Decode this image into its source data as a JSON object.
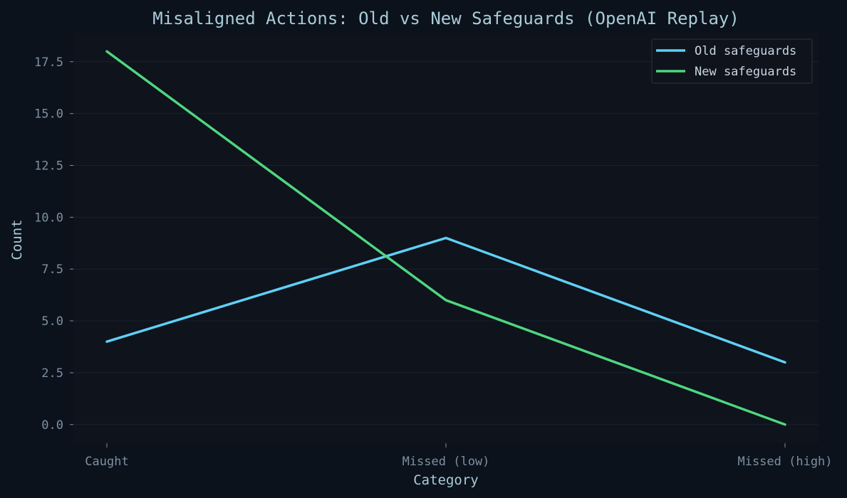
{
  "colors": {
    "background": "#0b121b",
    "plot_background": "#0e131c",
    "grid": "#1a2330",
    "title": "#a9cbd9",
    "axis_label": "#a9cbd9",
    "tick_label": "#7d8fa3",
    "legend_text": "#c9d6e2",
    "legend_border": "#283444"
  },
  "chart_data": {
    "type": "line",
    "title": "Misaligned Actions: Old vs New Safeguards (OpenAI Replay)",
    "xlabel": "Category",
    "ylabel": "Count",
    "categories": [
      "Caught",
      "Missed (low)",
      "Missed (high)"
    ],
    "series": [
      {
        "name": "Old safeguards",
        "values": [
          4,
          9,
          3
        ],
        "color": "#5fd0f5"
      },
      {
        "name": "New safeguards",
        "values": [
          18,
          6,
          0
        ],
        "color": "#4fd67f"
      }
    ],
    "ylim": [
      -0.9,
      18.9
    ],
    "yticks": [
      "0.0",
      "2.5",
      "5.0",
      "7.5",
      "10.0",
      "12.5",
      "15.0",
      "17.5"
    ],
    "grid": true,
    "legend": "top-right"
  }
}
